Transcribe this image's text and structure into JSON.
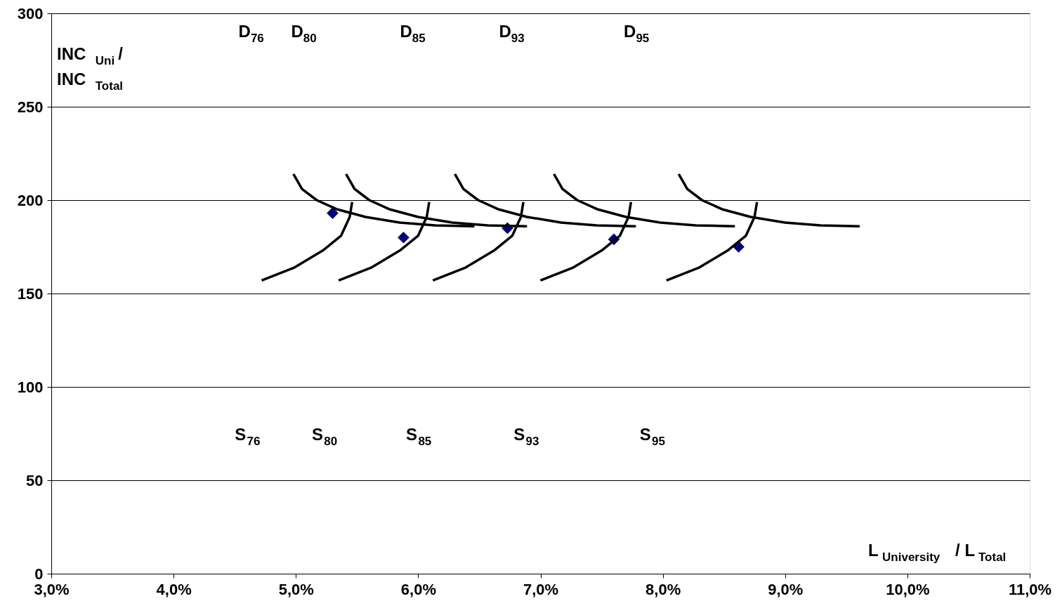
{
  "chart_data": {
    "type": "scatter",
    "xlabel": "L $_{University}$ / L $_{Total}$",
    "ylabel": "INC $_{Uni}$ /\nINC $_{Total}$",
    "xlim": [
      3.0,
      11.0
    ],
    "xticks": [
      {
        "value": 3,
        "label": "3,0%"
      },
      {
        "value": 4,
        "label": "4,0%"
      },
      {
        "value": 5,
        "label": "5,0%"
      },
      {
        "value": 6,
        "label": "6,0%"
      },
      {
        "value": 7,
        "label": "7,0%"
      },
      {
        "value": 8,
        "label": "8,0%"
      },
      {
        "value": 9,
        "label": "9,0%"
      },
      {
        "value": 10,
        "label": "10,0%"
      },
      {
        "value": 11,
        "label": "11,0%"
      }
    ],
    "ylim": [
      0,
      300
    ],
    "yticks": [
      0,
      50,
      100,
      150,
      200,
      250,
      300
    ],
    "grid": "y",
    "series": [
      {
        "marker": "diamond",
        "color": "#000080",
        "x": [
          5.3,
          5.88,
          6.73,
          7.6,
          8.62
        ],
        "values": [
          193,
          180,
          185,
          179,
          175
        ]
      },
      {
        "type": "line",
        "color": "#000000",
        "x": [
          4.98,
          5.05,
          5.17,
          5.34,
          5.57,
          5.85,
          6.14,
          6.46
        ],
        "values": [
          214,
          206,
          200,
          195,
          191,
          188,
          186.5,
          186
        ]
      },
      {
        "type": "line",
        "color": "#000000",
        "x": [
          5.41,
          5.48,
          5.6,
          5.77,
          6.0,
          6.28,
          6.57,
          6.89
        ],
        "values": [
          214,
          206,
          200,
          195,
          191,
          188,
          186.5,
          186
        ]
      },
      {
        "type": "line",
        "color": "#000000",
        "x": [
          6.3,
          6.37,
          6.49,
          6.66,
          6.89,
          7.17,
          7.46,
          7.78
        ],
        "values": [
          214,
          206,
          200,
          195,
          191,
          188,
          186.5,
          186
        ]
      },
      {
        "type": "line",
        "color": "#000000",
        "x": [
          7.11,
          7.18,
          7.3,
          7.47,
          7.7,
          7.98,
          8.27,
          8.59
        ],
        "values": [
          214,
          206,
          200,
          195,
          191,
          188,
          186.5,
          186
        ]
      },
      {
        "type": "line",
        "color": "#000000",
        "x": [
          8.13,
          8.2,
          8.32,
          8.49,
          8.72,
          9.0,
          9.29,
          9.61
        ],
        "values": [
          214,
          206,
          200,
          195,
          191,
          188,
          186.5,
          186
        ]
      },
      {
        "type": "line",
        "color": "#000000",
        "x": [
          4.72,
          4.99,
          5.22,
          5.37,
          5.44,
          5.46
        ],
        "values": [
          157,
          164,
          173,
          181,
          191,
          199
        ]
      },
      {
        "type": "line",
        "color": "#000000",
        "x": [
          5.35,
          5.62,
          5.85,
          6.0,
          6.07,
          6.09
        ],
        "values": [
          157,
          164,
          173,
          181,
          191,
          199
        ]
      },
      {
        "type": "line",
        "color": "#000000",
        "x": [
          6.12,
          6.39,
          6.62,
          6.77,
          6.84,
          6.86
        ],
        "values": [
          157,
          164,
          173,
          181,
          191,
          199
        ]
      },
      {
        "type": "line",
        "color": "#000000",
        "x": [
          7.0,
          7.27,
          7.5,
          7.65,
          7.72,
          7.74
        ],
        "values": [
          157,
          164,
          173,
          181,
          191,
          199
        ]
      },
      {
        "type": "line",
        "color": "#000000",
        "x": [
          8.03,
          8.3,
          8.53,
          8.68,
          8.75,
          8.77
        ],
        "values": [
          157,
          164,
          173,
          181,
          191,
          199
        ]
      }
    ],
    "annotations": [
      "D$_{76}$",
      "D$_{80}$",
      "D$_{85}$",
      "D$_{93}$",
      "D$_{95}$",
      "S$_{76}$",
      "S$_{80}$",
      "S$_{85}$",
      "S$_{93}$",
      "S$_{95}$"
    ]
  }
}
